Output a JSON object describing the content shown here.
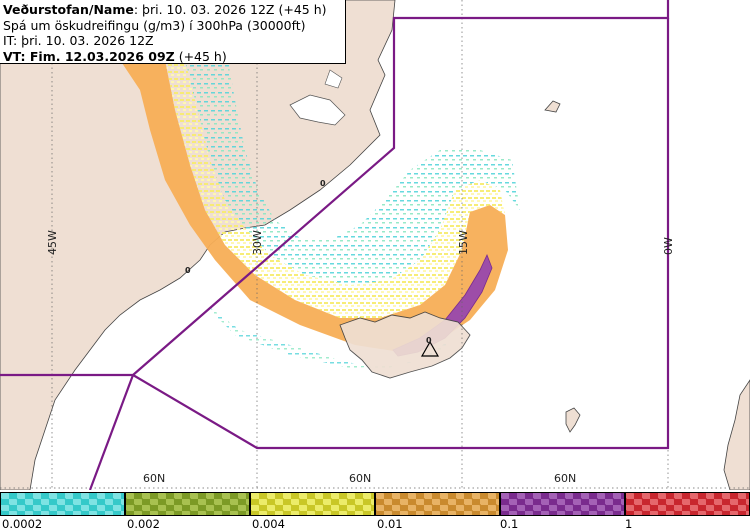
{
  "header": {
    "line1_bold": "Veðurstofan/Name",
    "line1_rest": ": þri. 10. 03. 2026 12Z (+45 h)",
    "line2": "Spá um öskudreifingu (g/m3) í 300hPa (30000ft)",
    "line3": "IT: þri. 10. 03. 2026 12Z",
    "line4_bold": "VT: Fim. 12.03.2026 09Z",
    "line4_rest": " (+45 h)"
  },
  "map": {
    "lon_labels": [
      "45W",
      "30W",
      "15W",
      "0W"
    ],
    "lat_labels": [
      "60N",
      "60N",
      "60N"
    ],
    "contour_labels": [
      "0",
      "0",
      "0"
    ]
  },
  "legend": {
    "tick_labels": [
      "0.0002",
      "0.002",
      "0.004",
      "0.01",
      "0.1",
      "1"
    ],
    "colors": [
      {
        "name": "cyan",
        "a": "#35c9c9",
        "b": "#7ee3e3"
      },
      {
        "name": "olive",
        "a": "#7c9a25",
        "b": "#a8c150"
      },
      {
        "name": "yellow",
        "a": "#c9c727",
        "b": "#ecec6a"
      },
      {
        "name": "orange",
        "a": "#c98a2e",
        "b": "#e8b365"
      },
      {
        "name": "purple",
        "a": "#7a2b8e",
        "b": "#a461b6"
      },
      {
        "name": "red",
        "a": "#c8262e",
        "b": "#e5676c"
      }
    ]
  },
  "colors": {
    "land": "#efdfd3",
    "plume_orange": "#f7ae56",
    "plume_yellow": "#fbf18a",
    "plume_purple": "#9d4da8",
    "fir_boundary": "#7a1a85"
  }
}
